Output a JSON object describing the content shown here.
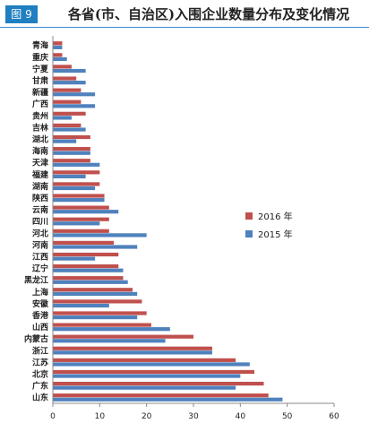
{
  "figure": {
    "badge": "图 9"
  },
  "chart_data": {
    "type": "bar",
    "orientation": "horizontal",
    "title": "各省(市、自治区)入围企业数量分布及变化情况",
    "categories": [
      "青海",
      "重庆",
      "宁夏",
      "甘肃",
      "新疆",
      "广西",
      "贵州",
      "吉林",
      "湖北",
      "海南",
      "天津",
      "福建",
      "湖南",
      "陕西",
      "云南",
      "四川",
      "河北",
      "河南",
      "江西",
      "辽宁",
      "黑龙江",
      "上海",
      "安徽",
      "香港",
      "山西",
      "内蒙古",
      "浙江",
      "江苏",
      "北京",
      "广东",
      "山东"
    ],
    "series": [
      {
        "name": "2016 年",
        "color": "#c0504d",
        "values": [
          2,
          2,
          4,
          5,
          6,
          6,
          7,
          6,
          8,
          8,
          8,
          10,
          10,
          11,
          12,
          12,
          12,
          13,
          14,
          14,
          15,
          17,
          19,
          20,
          21,
          30,
          34,
          39,
          43,
          45,
          46
        ]
      },
      {
        "name": "2015 年",
        "color": "#4f81bd",
        "values": [
          2,
          3,
          7,
          7,
          9,
          9,
          4,
          7,
          5,
          8,
          10,
          7,
          9,
          11,
          14,
          10,
          20,
          18,
          9,
          15,
          16,
          18,
          12,
          18,
          25,
          24,
          34,
          42,
          40,
          39,
          49
        ]
      }
    ],
    "xlim": [
      0,
      60
    ],
    "xticks": [
      0,
      10,
      20,
      30,
      40,
      50,
      60
    ],
    "grid": false,
    "legend_position": "right"
  }
}
